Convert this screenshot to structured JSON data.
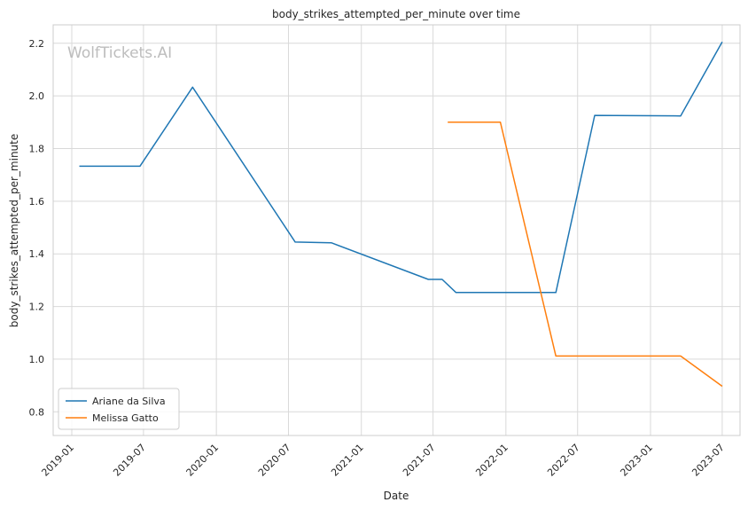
{
  "chart_data": {
    "type": "line",
    "title": "body_strikes_attempted_per_minute over time",
    "xlabel": "Date",
    "ylabel": "body_strikes_attempted_per_minute",
    "watermark": "WolfTickets.AI",
    "x_ticks": [
      "2019-01",
      "2019-07",
      "2020-01",
      "2020-07",
      "2021-01",
      "2021-07",
      "2022-01",
      "2022-07",
      "2023-01",
      "2023-07"
    ],
    "y_ticks": [
      "0.8",
      "1.0",
      "1.2",
      "1.4",
      "1.6",
      "1.8",
      "2.0",
      "2.2"
    ],
    "xlim": [
      "2018-11-15",
      "2023-08-15"
    ],
    "ylim": [
      0.71,
      2.27
    ],
    "grid": true,
    "legend_position": "lower-left",
    "series": [
      {
        "name": "Ariane da Silva",
        "color": "#1f77b4",
        "x": [
          "2019-01-20",
          "2019-06-22",
          "2019-11-02",
          "2020-07-18",
          "2020-10-17",
          "2021-06-19",
          "2021-07-24",
          "2021-08-28",
          "2022-05-07",
          "2022-08-13",
          "2023-03-18",
          "2023-07-01"
        ],
        "y": [
          1.733,
          1.733,
          2.033,
          1.445,
          1.442,
          1.303,
          1.303,
          1.253,
          1.253,
          1.926,
          1.924,
          2.205
        ]
      },
      {
        "name": "Melissa Gatto",
        "color": "#ff7f0e",
        "x": [
          "2021-08-07",
          "2021-12-18",
          "2022-05-07",
          "2023-03-18",
          "2023-07-01"
        ],
        "y": [
          1.9,
          1.9,
          1.012,
          1.012,
          0.897
        ]
      }
    ]
  }
}
